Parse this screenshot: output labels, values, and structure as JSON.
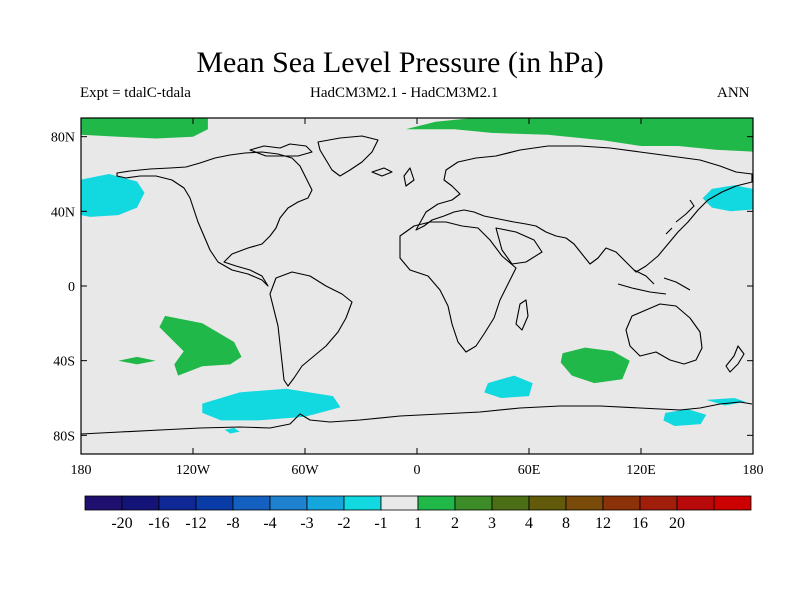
{
  "title": "Mean Sea Level Pressure (in hPa)",
  "experiment": "Expt = tdalC-tdala",
  "model": "HadCM3M2.1 - HadCM3M2.1",
  "season": "ANN",
  "map": {
    "lon_range": [
      -180,
      180
    ],
    "lat_range": [
      -90,
      90
    ],
    "lon_ticks": [
      {
        "value": -180,
        "label": "180"
      },
      {
        "value": -120,
        "label": "120W"
      },
      {
        "value": -60,
        "label": "60W"
      },
      {
        "value": 0,
        "label": "0"
      },
      {
        "value": 60,
        "label": "60E"
      },
      {
        "value": 120,
        "label": "120E"
      },
      {
        "value": 180,
        "label": "180"
      }
    ],
    "lat_ticks": [
      {
        "value": 80,
        "label": "80N"
      },
      {
        "value": 40,
        "label": "40N"
      },
      {
        "value": 0,
        "label": "0"
      },
      {
        "value": -40,
        "label": "40S"
      },
      {
        "value": -80,
        "label": "80S"
      }
    ],
    "background_color": "#e8e8e8",
    "anomaly_regions": [
      {
        "name": "arctic-positive-west",
        "color": "#21b84a",
        "points": [
          [
            -180,
            90
          ],
          [
            -112,
            90
          ],
          [
            -112,
            84
          ],
          [
            -120,
            80
          ],
          [
            -140,
            79
          ],
          [
            -160,
            80
          ],
          [
            -180,
            81
          ]
        ]
      },
      {
        "name": "arctic-positive-east",
        "color": "#21b84a",
        "points": [
          [
            -6,
            84
          ],
          [
            10,
            88
          ],
          [
            30,
            90
          ],
          [
            180,
            90
          ],
          [
            180,
            72
          ],
          [
            160,
            73
          ],
          [
            140,
            75
          ],
          [
            120,
            75
          ],
          [
            100,
            78
          ],
          [
            70,
            81
          ],
          [
            40,
            82
          ],
          [
            20,
            84
          ]
        ]
      },
      {
        "name": "north-pacific-negative-west",
        "color": "#12d8e0",
        "points": [
          [
            -180,
            57
          ],
          [
            -165,
            60
          ],
          [
            -150,
            56
          ],
          [
            -146,
            50
          ],
          [
            -150,
            42
          ],
          [
            -160,
            38
          ],
          [
            -175,
            37
          ],
          [
            -180,
            38
          ]
        ]
      },
      {
        "name": "north-pacific-negative-east",
        "color": "#12d8e0",
        "points": [
          [
            180,
            52
          ],
          [
            170,
            54
          ],
          [
            158,
            52
          ],
          [
            153,
            47
          ],
          [
            158,
            42
          ],
          [
            168,
            40
          ],
          [
            180,
            41
          ]
        ]
      },
      {
        "name": "south-pacific-positive",
        "color": "#21b84a",
        "points": [
          [
            -135,
            -16
          ],
          [
            -115,
            -20
          ],
          [
            -98,
            -30
          ],
          [
            -94,
            -38
          ],
          [
            -100,
            -42
          ],
          [
            -115,
            -43
          ],
          [
            -128,
            -48
          ],
          [
            -130,
            -42
          ],
          [
            -125,
            -35
          ],
          [
            -132,
            -28
          ],
          [
            -138,
            -22
          ]
        ]
      },
      {
        "name": "south-pacific-positive-small",
        "color": "#21b84a",
        "points": [
          [
            -160,
            -40
          ],
          [
            -150,
            -38
          ],
          [
            -140,
            -40
          ],
          [
            -150,
            -42
          ]
        ]
      },
      {
        "name": "southern-ocean-negative-pacific",
        "color": "#12d8e0",
        "points": [
          [
            -115,
            -63
          ],
          [
            -95,
            -57
          ],
          [
            -70,
            -55
          ],
          [
            -45,
            -59
          ],
          [
            -41,
            -65
          ],
          [
            -60,
            -70
          ],
          [
            -85,
            -72
          ],
          [
            -105,
            -72
          ],
          [
            -115,
            -68
          ]
        ]
      },
      {
        "name": "southern-ocean-negative-atlantic",
        "color": "#12d8e0",
        "points": [
          [
            38,
            -52
          ],
          [
            52,
            -48
          ],
          [
            62,
            -52
          ],
          [
            60,
            -59
          ],
          [
            45,
            -60
          ],
          [
            36,
            -57
          ]
        ]
      },
      {
        "name": "indian-ocean-positive",
        "color": "#21b84a",
        "points": [
          [
            78,
            -36
          ],
          [
            90,
            -33
          ],
          [
            105,
            -35
          ],
          [
            114,
            -40
          ],
          [
            110,
            -50
          ],
          [
            95,
            -52
          ],
          [
            83,
            -48
          ],
          [
            77,
            -41
          ]
        ]
      },
      {
        "name": "southern-ocean-negative-pacific-small",
        "color": "#12d8e0",
        "points": [
          [
            133,
            -68
          ],
          [
            145,
            -66
          ],
          [
            155,
            -69
          ],
          [
            152,
            -74
          ],
          [
            138,
            -75
          ],
          [
            132,
            -72
          ]
        ]
      },
      {
        "name": "drake-negative-small",
        "color": "#12d8e0",
        "points": [
          [
            -103,
            -77
          ],
          [
            -98,
            -76
          ],
          [
            -95,
            -78
          ],
          [
            -100,
            -79
          ]
        ]
      },
      {
        "name": "antarctic-negative-small",
        "color": "#12d8e0",
        "points": [
          [
            155,
            -61
          ],
          [
            170,
            -60
          ],
          [
            176,
            -62
          ],
          [
            165,
            -64
          ]
        ]
      }
    ]
  },
  "colorbar": {
    "colors": [
      "#1f0f6e",
      "#141478",
      "#0f2896",
      "#0a3ca8",
      "#1460c0",
      "#1e82d0",
      "#14a6dc",
      "#12d8e0",
      "#e8e8e8",
      "#21b84a",
      "#3c8c28",
      "#4c6e14",
      "#605a0a",
      "#7a4a08",
      "#8c3208",
      "#a01e0a",
      "#b80a0a",
      "#cc0000"
    ],
    "labels": [
      "-20",
      "-16",
      "-12",
      "-8",
      "-4",
      "-3",
      "-2",
      "-1",
      "1",
      "2",
      "3",
      "4",
      "8",
      "12",
      "16",
      "20"
    ]
  }
}
